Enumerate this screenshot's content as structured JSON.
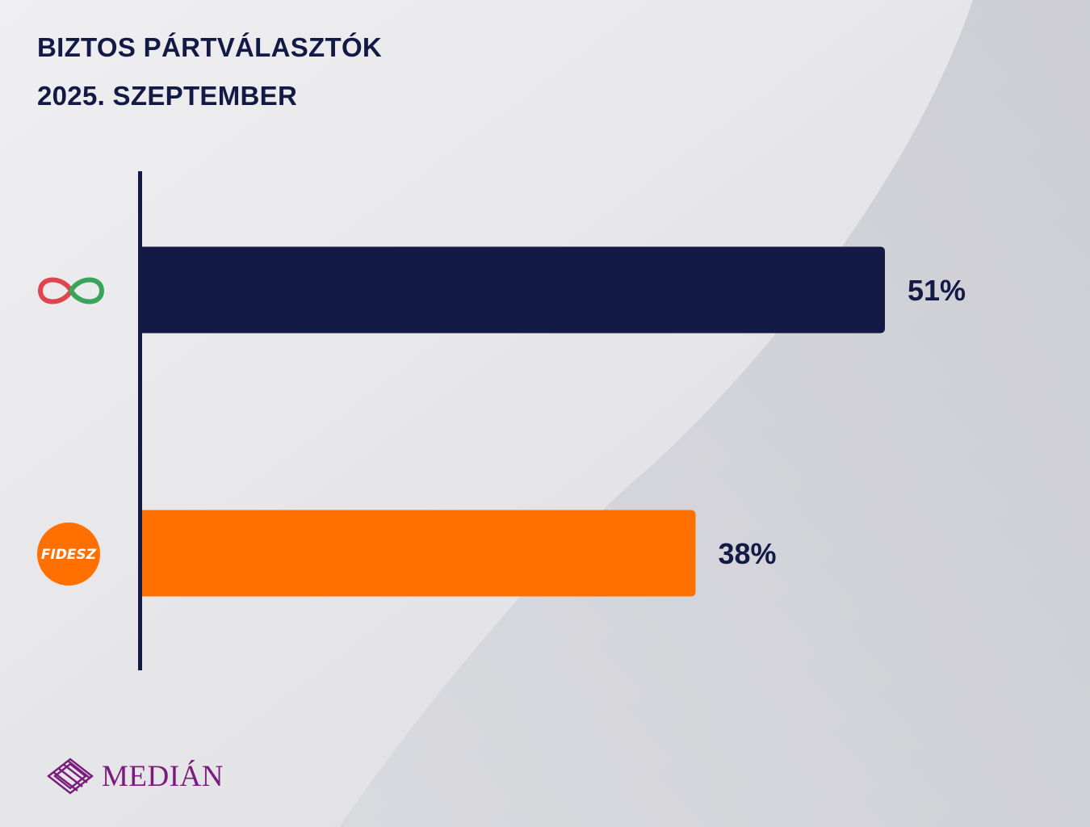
{
  "title": [
    "BIZTOS PÁRTVÁLASZTÓK",
    "2025. SZEPTEMBER"
  ],
  "chart_data": {
    "type": "bar",
    "orientation": "horizontal",
    "categories": [
      "Tisza-icon",
      "FIDESZ"
    ],
    "values": [
      51,
      38
    ],
    "value_labels": [
      "51%",
      "38%"
    ],
    "colors": [
      "#131a45",
      "#ff7000"
    ],
    "xlim": [
      0,
      100
    ],
    "grid": false,
    "legend": "none"
  },
  "logos": {
    "tisza_icon": "infinity-icon",
    "fidesz_text": "FIDESZ",
    "median_text": "MEDIÁN"
  },
  "colors": {
    "navy": "#131a45",
    "orange": "#ff7000",
    "median_purple": "#7a1c7e",
    "background": "#e8e8ea"
  }
}
